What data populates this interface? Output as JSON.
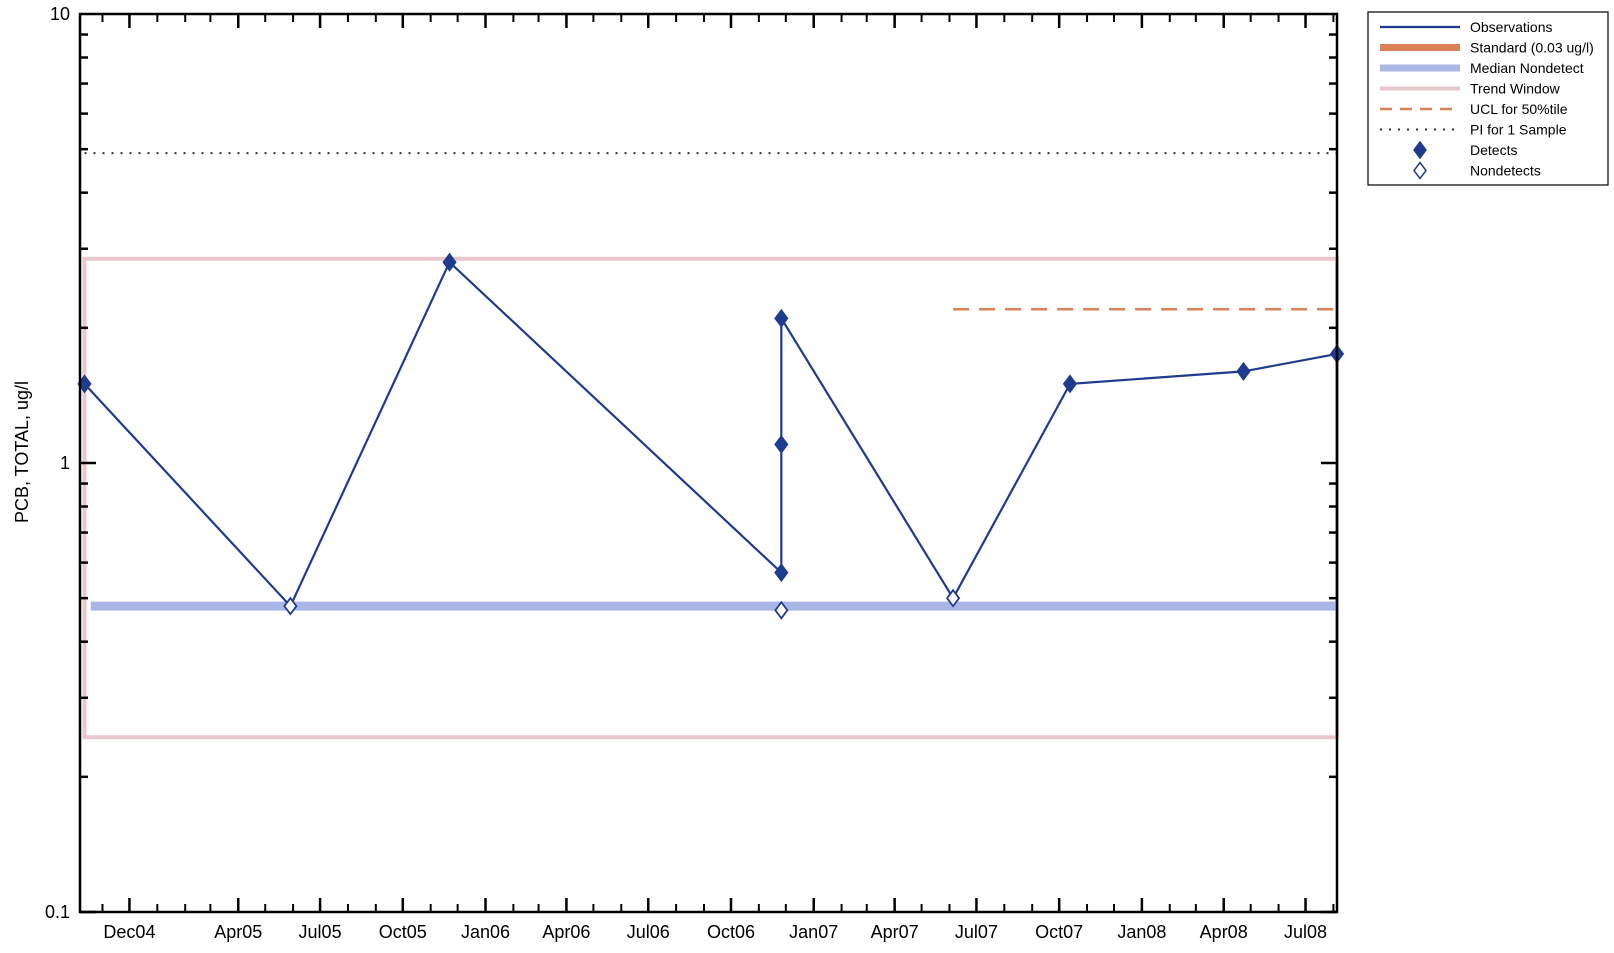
{
  "chart_data": {
    "type": "line",
    "ylabel": "PCB, TOTAL, ug/l",
    "xlabel": "",
    "title": "",
    "y_scale": "log",
    "ylim": [
      0.1,
      10
    ],
    "y_ticks": [
      {
        "value": 0.1,
        "label": "0.1"
      },
      {
        "value": 1,
        "label": "1"
      },
      {
        "value": 10,
        "label": "10"
      }
    ],
    "xlim": [
      "2004-10-07",
      "2008-08-05"
    ],
    "x_ticks": [
      {
        "date": "2004-12-01",
        "label": "Dec04"
      },
      {
        "date": "2005-04-01",
        "label": "Apr05"
      },
      {
        "date": "2005-07-01",
        "label": "Jul05"
      },
      {
        "date": "2005-10-01",
        "label": "Oct05"
      },
      {
        "date": "2006-01-01",
        "label": "Jan06"
      },
      {
        "date": "2006-04-01",
        "label": "Apr06"
      },
      {
        "date": "2006-07-01",
        "label": "Jul06"
      },
      {
        "date": "2006-10-01",
        "label": "Oct06"
      },
      {
        "date": "2007-01-01",
        "label": "Jan07"
      },
      {
        "date": "2007-04-01",
        "label": "Apr07"
      },
      {
        "date": "2007-07-01",
        "label": "Jul07"
      },
      {
        "date": "2007-10-01",
        "label": "Oct07"
      },
      {
        "date": "2008-01-01",
        "label": "Jan08"
      },
      {
        "date": "2008-04-01",
        "label": "Apr08"
      },
      {
        "date": "2008-07-01",
        "label": "Jul08"
      }
    ],
    "observations": [
      {
        "date": "2004-10-12",
        "value": 1.5,
        "type": "detect"
      },
      {
        "date": "2005-05-29",
        "value": 0.48,
        "type": "nondetect"
      },
      {
        "date": "2005-11-22",
        "value": 2.8,
        "type": "detect"
      },
      {
        "date": "2006-11-26",
        "value": 0.57,
        "type": "detect"
      },
      {
        "date": "2006-11-26",
        "value": 1.1,
        "type": "detect"
      },
      {
        "date": "2006-11-26",
        "value": 2.1,
        "type": "detect"
      },
      {
        "date": "2006-11-26",
        "value": 0.47,
        "type": "nondetect"
      },
      {
        "date": "2007-06-05",
        "value": 0.5,
        "type": "nondetect"
      },
      {
        "date": "2007-10-13",
        "value": 1.5,
        "type": "detect"
      },
      {
        "date": "2008-04-23",
        "value": 1.6,
        "type": "detect"
      },
      {
        "date": "2008-08-05",
        "value": 1.75,
        "type": "detect"
      }
    ],
    "observation_path": [
      {
        "date": "2004-10-12",
        "value": 1.5
      },
      {
        "date": "2005-05-29",
        "value": 0.48
      },
      {
        "date": "2005-11-22",
        "value": 2.8
      },
      {
        "date": "2006-11-26",
        "value": 0.57
      },
      {
        "date": "2006-11-26",
        "value": 2.1
      },
      {
        "date": "2007-06-05",
        "value": 0.5
      },
      {
        "date": "2007-10-13",
        "value": 1.5
      },
      {
        "date": "2008-04-23",
        "value": 1.6
      },
      {
        "date": "2008-08-05",
        "value": 1.75
      }
    ],
    "median_nondetect": {
      "value": 0.48,
      "start": "2004-10-19",
      "end": "2008-08-05"
    },
    "trend_window": {
      "start": "2004-10-12",
      "end": "2008-08-05",
      "low": 0.245,
      "high": 2.85
    },
    "ucl_50th_percentile": {
      "value": 2.2,
      "start": "2007-06-05",
      "end": "2008-08-05"
    },
    "pi_1_sample": {
      "value": 4.9,
      "start": "2004-10-12",
      "end": "2008-08-05"
    },
    "colors": {
      "observations": "#1f3b8f",
      "standard": "#d9825a",
      "median_nondetect": "#a9b6e6",
      "trend_window": "#e8c8cc",
      "ucl": "#d9825a",
      "pi": "#333333",
      "detects": "#1f3b8f",
      "nondetects_fill": "#ffffff"
    },
    "legend": {
      "position": "top-right, outside plot",
      "items": [
        {
          "label": "Observations",
          "style": "line"
        },
        {
          "label": "Standard (0.03 ug/l)",
          "style": "thick-orange"
        },
        {
          "label": "Median Nondetect",
          "style": "thick-blue"
        },
        {
          "label": "Trend Window",
          "style": "pink"
        },
        {
          "label": "UCL for 50%tile",
          "style": "dashed"
        },
        {
          "label": "PI for 1 Sample",
          "style": "dotted"
        },
        {
          "label": "Detects",
          "style": "filled-diamond"
        },
        {
          "label": "Nondetects",
          "style": "open-diamond"
        }
      ]
    }
  }
}
